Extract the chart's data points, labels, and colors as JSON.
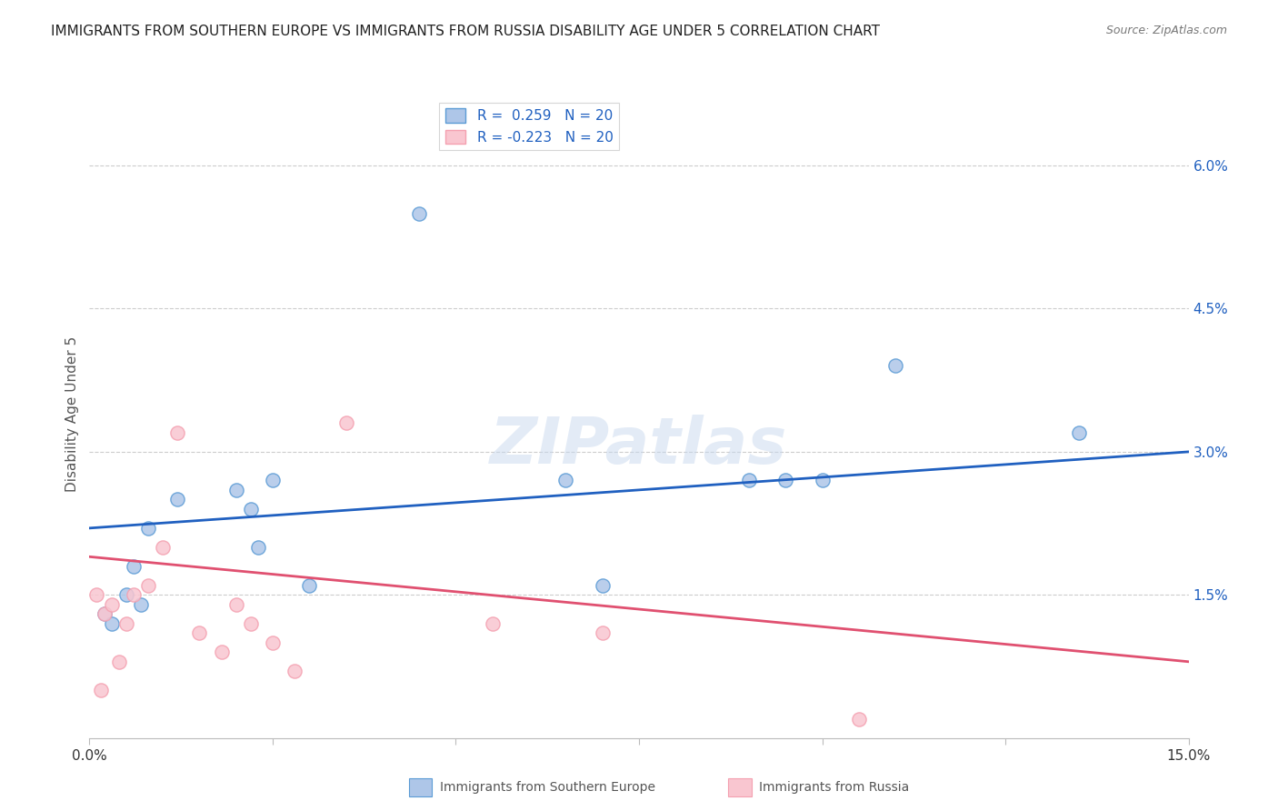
{
  "title": "IMMIGRANTS FROM SOUTHERN EUROPE VS IMMIGRANTS FROM RUSSIA DISABILITY AGE UNDER 5 CORRELATION CHART",
  "source": "Source: ZipAtlas.com",
  "ylabel": "Disability Age Under 5",
  "ytick_labels": [
    "1.5%",
    "3.0%",
    "4.5%",
    "6.0%"
  ],
  "ytick_values": [
    1.5,
    3.0,
    4.5,
    6.0
  ],
  "xlim": [
    0.0,
    15.0
  ],
  "ylim": [
    0.0,
    6.8
  ],
  "legend_label_blue": "R =  0.259   N = 20",
  "legend_label_pink": "R = -0.223   N = 20",
  "blue_scatter_x": [
    0.2,
    0.5,
    0.6,
    0.7,
    0.8,
    1.2,
    2.0,
    2.2,
    2.3,
    2.5,
    3.0,
    4.5,
    6.5,
    7.0,
    9.0,
    9.5,
    10.0,
    11.0,
    13.5,
    0.3
  ],
  "blue_scatter_y": [
    1.3,
    1.5,
    1.8,
    1.4,
    2.2,
    2.5,
    2.6,
    2.4,
    2.0,
    2.7,
    1.6,
    5.5,
    2.7,
    1.6,
    2.7,
    2.7,
    2.7,
    3.9,
    3.2,
    1.2
  ],
  "pink_scatter_x": [
    0.1,
    0.2,
    0.3,
    0.4,
    0.5,
    0.6,
    0.8,
    1.0,
    1.5,
    1.8,
    2.0,
    2.2,
    2.5,
    2.8,
    3.5,
    5.5,
    7.0,
    10.5,
    0.15,
    1.2
  ],
  "pink_scatter_y": [
    1.5,
    1.3,
    1.4,
    0.8,
    1.2,
    1.5,
    1.6,
    2.0,
    1.1,
    0.9,
    1.4,
    1.2,
    1.0,
    0.7,
    3.3,
    1.2,
    1.1,
    0.2,
    0.5,
    3.2
  ],
  "blue_line_x": [
    0.0,
    15.0
  ],
  "blue_line_y": [
    2.2,
    3.0
  ],
  "pink_line_x": [
    0.0,
    15.0
  ],
  "pink_line_y": [
    1.9,
    0.8
  ],
  "blue_marker_color": "#5b9bd5",
  "blue_fill_color": "#aec6e8",
  "pink_marker_color": "#f4a0b0",
  "pink_fill_color": "#f9c6d0",
  "line_blue": "#2060c0",
  "line_pink": "#e05070",
  "scatter_size": 120,
  "watermark": "ZIPatlas",
  "background_color": "#ffffff",
  "grid_color": "#cccccc",
  "bottom_legend_blue": "Immigrants from Southern Europe",
  "bottom_legend_pink": "Immigrants from Russia"
}
